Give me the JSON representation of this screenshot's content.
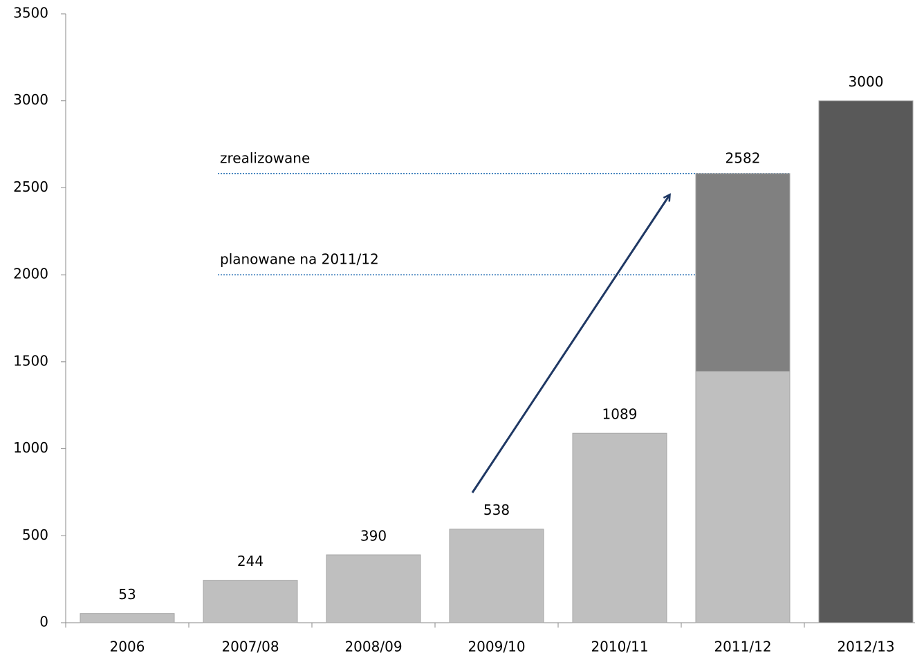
{
  "chart_data": {
    "type": "bar",
    "stacked": true,
    "categories": [
      "2006",
      "2007/08",
      "2008/09",
      "2009/10",
      "2010/11",
      "2011/12",
      "2012/13"
    ],
    "series": [
      {
        "color": "#bfbfbf",
        "values": [
          53,
          244,
          390,
          538,
          1089,
          1445,
          null
        ]
      },
      {
        "color": "#808080",
        "values": [
          null,
          null,
          null,
          null,
          null,
          1137,
          null
        ]
      },
      {
        "color": "#595959",
        "values": [
          null,
          null,
          null,
          null,
          null,
          null,
          3000
        ]
      }
    ],
    "reference_lines": [
      {
        "text": "zrealizowane",
        "value": 2582
      },
      {
        "text": "planowane na 2011/12",
        "value": 2000
      }
    ],
    "ylim": [
      0,
      3500
    ],
    "yticks": [
      0,
      500,
      1000,
      1500,
      2000,
      2500,
      3000,
      3500
    ]
  }
}
